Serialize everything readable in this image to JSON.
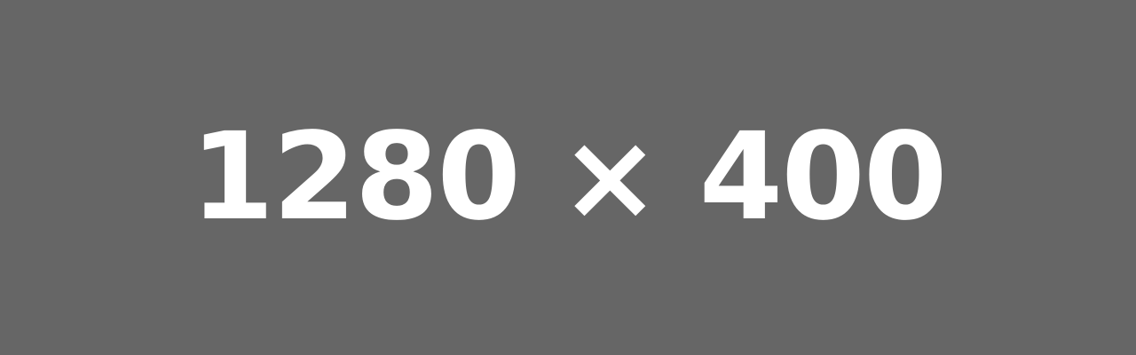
{
  "placeholder": {
    "text": "1280 × 400",
    "background_color": "#666666",
    "text_color": "#ffffff"
  }
}
